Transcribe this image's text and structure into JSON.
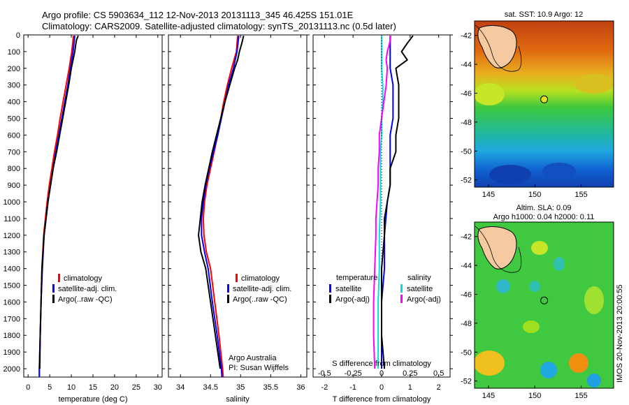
{
  "header": {
    "line1": "Argo profile: CS 5903634_112 12-Nov-2013 20131113_345 46.425S 151.01E",
    "line2": "Climatology: CARS2009. Satellite-adjusted climatology: synTS_20131113.nc (0.5d later)"
  },
  "side_label": "IMOS 20-Nov-2013 20:00:55",
  "map_sst": {
    "title": "sat. SST: 10.9 Argo: 12",
    "xticks": [
      "145",
      "150",
      "155"
    ],
    "yticks": [
      "-42",
      "-44",
      "-46",
      "-48",
      "-50",
      "-52"
    ],
    "colors": {
      "warm": "#e06010",
      "mid": "#3cc83c",
      "cold": "#1060d0",
      "land": "#f5caa0"
    }
  },
  "map_sla": {
    "title1": "Altim. SLA: 0.09",
    "title2": "Argo h1000: 0.04 h2000: 0.11",
    "xticks": [
      "145",
      "150",
      "155"
    ],
    "yticks": [
      "-42",
      "-44",
      "-46",
      "-48",
      "-50",
      "-52"
    ],
    "colors": {
      "bg": "#40c840",
      "land": "#f5caa0"
    }
  },
  "legend_temp": [
    "climatology",
    "satellite-adj. clim.",
    "Argo(..raw -QC)"
  ],
  "legend_sal": [
    "climatology",
    "satellite-adj. clim.",
    "Argo(..raw -QC)"
  ],
  "legend_diff": {
    "temperature_head": "temperature",
    "salinity_head": "salinity",
    "t_items": [
      "satellite",
      "Argo(-adj)"
    ],
    "s_items": [
      "satellite",
      "Argo(-adj)"
    ]
  },
  "argo_credit": [
    "Argo Australia",
    "PI: Susan Wijffels"
  ],
  "chart_data": [
    {
      "type": "line",
      "xlabel": "temperature (deg C)",
      "ylabel": "",
      "xlim": [
        -1,
        31
      ],
      "ylim": [
        2050,
        0
      ],
      "xticks": [
        0,
        5,
        10,
        15,
        20,
        25,
        30
      ],
      "yticks": [
        0,
        100,
        200,
        300,
        400,
        500,
        600,
        700,
        800,
        900,
        1000,
        1100,
        1200,
        1300,
        1400,
        1500,
        1600,
        1700,
        1800,
        1900,
        2000
      ],
      "colors": [
        "#ff0000",
        "#0000ff",
        "#000000"
      ],
      "series": [
        {
          "name": "climatology",
          "depth": [
            5,
            100,
            200,
            300,
            400,
            500,
            600,
            700,
            800,
            900,
            1000,
            1200,
            1400,
            1600,
            1800,
            2000,
            2050
          ],
          "values": [
            10.5,
            10.1,
            9.5,
            8.8,
            8.1,
            7.4,
            6.8,
            6.1,
            5.5,
            4.9,
            4.4,
            3.6,
            3.2,
            3.0,
            2.8,
            2.6,
            2.6
          ]
        },
        {
          "name": "satellite-adj. clim.",
          "depth": [
            5,
            100,
            200,
            300,
            400,
            500,
            600,
            700,
            800,
            900,
            1000,
            1200,
            1400,
            1600,
            1800,
            2000,
            2050
          ],
          "values": [
            10.8,
            10.4,
            9.8,
            9.2,
            8.5,
            7.8,
            7.1,
            6.4,
            5.8,
            5.2,
            4.6,
            3.7,
            3.3,
            3.0,
            2.8,
            2.6,
            2.6
          ]
        },
        {
          "name": "Argo(..raw -QC)",
          "depth": [
            5,
            30,
            60,
            100,
            150,
            200,
            300,
            400,
            500,
            600,
            700,
            800,
            900,
            1000,
            1200,
            1400,
            1600,
            1800,
            2000
          ],
          "values": [
            11.6,
            11.2,
            11.0,
            10.8,
            10.4,
            10.0,
            9.4,
            8.7,
            8.0,
            7.3,
            6.6,
            5.8,
            5.2,
            4.6,
            3.7,
            3.2,
            3.0,
            2.8,
            2.7
          ]
        }
      ]
    },
    {
      "type": "line",
      "xlabel": "salinity",
      "ylabel": "",
      "xlim": [
        33.8,
        36.1
      ],
      "ylim": [
        2050,
        0
      ],
      "xticks": [
        34,
        34.5,
        35,
        35.5,
        36
      ],
      "colors": [
        "#ff0000",
        "#0000ff",
        "#000000"
      ],
      "series": [
        {
          "name": "climatology",
          "depth": [
            5,
            100,
            200,
            300,
            400,
            500,
            600,
            700,
            800,
            900,
            1000,
            1100,
            1200,
            1300,
            1400,
            1600,
            1800,
            2000,
            2050
          ],
          "values": [
            34.95,
            34.93,
            34.85,
            34.78,
            34.72,
            34.67,
            34.62,
            34.56,
            34.5,
            34.44,
            34.4,
            34.38,
            34.39,
            34.43,
            34.5,
            34.57,
            34.64,
            34.7,
            34.71
          ]
        },
        {
          "name": "satellite-adj. clim.",
          "depth": [
            5,
            100,
            200,
            300,
            400,
            500,
            600,
            700,
            800,
            900,
            1000,
            1100,
            1200,
            1300,
            1400,
            1600,
            1800,
            2000,
            2050
          ],
          "values": [
            34.97,
            34.94,
            34.88,
            34.8,
            34.74,
            34.68,
            34.62,
            34.55,
            34.48,
            34.42,
            34.38,
            34.35,
            34.35,
            34.4,
            34.46,
            34.53,
            34.61,
            34.68,
            34.69
          ]
        },
        {
          "name": "Argo(..raw -QC)",
          "depth": [
            5,
            50,
            100,
            150,
            200,
            300,
            400,
            500,
            600,
            700,
            800,
            900,
            1000,
            1100,
            1200,
            1300,
            1400,
            1600,
            1800,
            2000
          ],
          "values": [
            35.05,
            35.02,
            34.98,
            34.95,
            34.9,
            34.82,
            34.74,
            34.67,
            34.6,
            34.53,
            34.47,
            34.41,
            34.36,
            34.33,
            34.3,
            34.34,
            34.42,
            34.5,
            34.58,
            34.66
          ]
        }
      ]
    },
    {
      "type": "line",
      "xlabel": "T difference from climatology",
      "xlabel_top": "S difference from climatology",
      "ylabel": "",
      "xlim": [
        -2.4,
        2.4
      ],
      "ylim": [
        2050,
        0
      ],
      "xticks_t": [
        -2,
        -1,
        0,
        1,
        2
      ],
      "xticks_s": [
        -0.5,
        -0.25,
        0,
        0.25,
        0.5
      ],
      "colors": [
        "#0000ff",
        "#000000",
        "#00e0e0",
        "#ff00ff"
      ],
      "series": [
        {
          "name": "satellite",
          "var": "temperature",
          "depth": [
            5,
            100,
            200,
            300,
            400,
            500,
            600,
            700,
            800,
            900,
            1000,
            1200,
            1400,
            1600,
            1800,
            2000
          ],
          "values": [
            0.3,
            0.3,
            0.3,
            0.4,
            0.4,
            0.4,
            0.3,
            0.3,
            0.3,
            0.3,
            0.2,
            0.1,
            0.1,
            0.0,
            0.0,
            0.0
          ]
        },
        {
          "name": "Argo(-adj)",
          "var": "temperature",
          "depth": [
            5,
            50,
            100,
            150,
            200,
            300,
            400,
            500,
            600,
            700,
            800,
            900,
            1000,
            1100,
            1200,
            1400,
            1600,
            1800,
            2000
          ],
          "values": [
            1.1,
            0.9,
            0.7,
            0.9,
            0.5,
            0.6,
            0.6,
            0.6,
            0.5,
            0.5,
            0.3,
            0.3,
            0.2,
            0.1,
            0.1,
            0.0,
            0.0,
            0.0,
            0.1
          ]
        },
        {
          "name": "satellite",
          "var": "salinity",
          "depth": [
            5,
            100,
            200,
            300,
            400,
            500,
            600,
            700,
            800,
            900,
            1000,
            1200,
            1400,
            1600,
            1800,
            2000
          ],
          "values": [
            0.0,
            0.0,
            0.0,
            0.01,
            0.01,
            0.0,
            0.0,
            -0.01,
            -0.01,
            -0.01,
            -0.01,
            -0.02,
            -0.02,
            -0.03,
            -0.03,
            -0.03
          ]
        },
        {
          "name": "Argo(-adj)",
          "var": "salinity",
          "depth": [
            5,
            50,
            100,
            150,
            200,
            300,
            400,
            500,
            600,
            700,
            800,
            900,
            1000,
            1100,
            1200,
            1400,
            1600,
            1800,
            2000
          ],
          "values": [
            0.08,
            0.07,
            0.05,
            0.04,
            0.05,
            0.04,
            0.02,
            0.0,
            -0.02,
            -0.02,
            -0.03,
            -0.03,
            -0.04,
            -0.05,
            -0.05,
            -0.06,
            -0.07,
            -0.07,
            -0.06
          ]
        }
      ]
    }
  ]
}
